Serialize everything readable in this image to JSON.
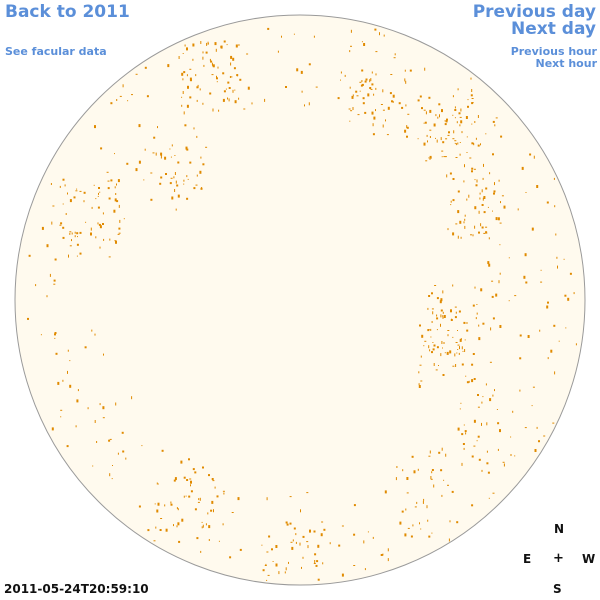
{
  "nav": {
    "back_label": "Back to 2011",
    "facular_label": "See facular data",
    "prev_day_label": "Previous day",
    "next_day_label": "Next day",
    "prev_hour_label": "Previous hour",
    "next_hour_label": "Next hour"
  },
  "timestamp": "2011-05-24T20:59:10",
  "compass": {
    "north": "N",
    "east": "E",
    "center": "+",
    "west": "W",
    "south": "S"
  },
  "colors": {
    "link": "#5b8fd9",
    "disk_fill": "#fffaee",
    "disk_stroke": "#9a9a9a",
    "feature": "#e08a00"
  }
}
